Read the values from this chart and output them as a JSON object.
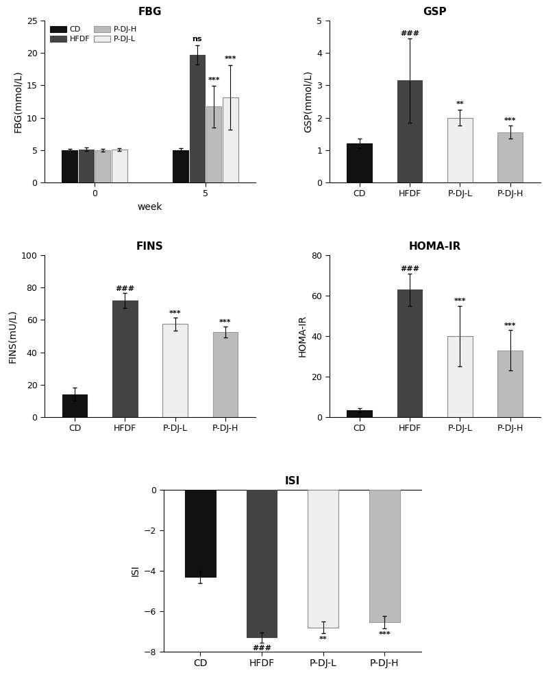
{
  "fbg": {
    "title": "FBG",
    "ylabel": "FBG(mmol/L)",
    "xlabel": "week",
    "ylim": [
      0,
      25
    ],
    "yticks": [
      0,
      5,
      10,
      15,
      20,
      25
    ],
    "weeks": [
      "0",
      "5"
    ],
    "groups": [
      "CD",
      "HFDF",
      "P-DJ-H",
      "P-DJ-L"
    ],
    "colors": [
      "#111111",
      "#444444",
      "#bbbbbb",
      "#eeeeee"
    ],
    "edgecolors": [
      "#111111",
      "#444444",
      "#999999",
      "#888888"
    ],
    "week0_values": [
      5.0,
      5.1,
      4.95,
      5.05
    ],
    "week0_errors": [
      0.2,
      0.25,
      0.2,
      0.2
    ],
    "week5_values": [
      5.0,
      19.7,
      11.7,
      13.1
    ],
    "week5_errors": [
      0.3,
      1.5,
      3.2,
      5.0
    ],
    "legend_order": [
      "CD",
      "HFDF",
      "P-DJ-H",
      "P-DJ-L"
    ],
    "annotations_week5": [
      "",
      "ns",
      "***",
      "***"
    ]
  },
  "gsp": {
    "title": "GSP",
    "ylabel": "GSP(mmol/L)",
    "ylim": [
      0,
      5
    ],
    "yticks": [
      0,
      1,
      2,
      3,
      4,
      5
    ],
    "categories": [
      "CD",
      "HFDF",
      "P-DJ-L",
      "P-DJ-H"
    ],
    "values": [
      1.2,
      3.15,
      2.0,
      1.55
    ],
    "errors": [
      0.15,
      1.3,
      0.25,
      0.2
    ],
    "colors": [
      "#111111",
      "#444444",
      "#eeeeee",
      "#bbbbbb"
    ],
    "edgecolors": [
      "#111111",
      "#444444",
      "#888888",
      "#999999"
    ],
    "annotations": [
      "",
      "###",
      "**",
      "***"
    ]
  },
  "fins": {
    "title": "FINS",
    "ylabel": "FINS(mU/L)",
    "ylim": [
      0,
      100
    ],
    "yticks": [
      0,
      20,
      40,
      60,
      80,
      100
    ],
    "categories": [
      "CD",
      "HFDF",
      "P-DJ-L",
      "P-DJ-H"
    ],
    "values": [
      14.0,
      72.0,
      57.5,
      52.5
    ],
    "errors": [
      4.0,
      4.5,
      4.0,
      3.5
    ],
    "colors": [
      "#111111",
      "#444444",
      "#eeeeee",
      "#bbbbbb"
    ],
    "edgecolors": [
      "#111111",
      "#444444",
      "#888888",
      "#999999"
    ],
    "annotations": [
      "",
      "###",
      "***",
      "***"
    ]
  },
  "homaIR": {
    "title": "HOMA-IR",
    "ylabel": "HOMA-IR",
    "ylim": [
      0,
      80
    ],
    "yticks": [
      0,
      20,
      40,
      60,
      80
    ],
    "categories": [
      "CD",
      "HFDF",
      "P-DJ-L",
      "P-DJ-H"
    ],
    "values": [
      3.5,
      63.0,
      40.0,
      33.0
    ],
    "errors": [
      1.0,
      8.0,
      15.0,
      10.0
    ],
    "colors": [
      "#111111",
      "#444444",
      "#eeeeee",
      "#bbbbbb"
    ],
    "edgecolors": [
      "#111111",
      "#444444",
      "#888888",
      "#999999"
    ],
    "annotations": [
      "",
      "###",
      "***",
      "***"
    ]
  },
  "isi": {
    "title": "ISI",
    "ylabel": "ISI",
    "ylim": [
      -8,
      0
    ],
    "yticks": [
      -8,
      -6,
      -4,
      -2,
      0
    ],
    "categories": [
      "CD",
      "HFDF",
      "P-DJ-L",
      "P-DJ-H"
    ],
    "values": [
      -4.3,
      -7.3,
      -6.8,
      -6.55
    ],
    "errors": [
      0.3,
      0.25,
      0.3,
      0.3
    ],
    "colors": [
      "#111111",
      "#444444",
      "#eeeeee",
      "#bbbbbb"
    ],
    "edgecolors": [
      "#111111",
      "#444444",
      "#888888",
      "#999999"
    ],
    "annotations": [
      "",
      "###",
      "**",
      "***"
    ]
  },
  "grouped_bar_width": 0.15,
  "single_bar_width": 0.5,
  "annotation_fontsize": 8,
  "label_fontsize": 10,
  "title_fontsize": 11,
  "tick_fontsize": 9,
  "legend_fontsize": 8
}
